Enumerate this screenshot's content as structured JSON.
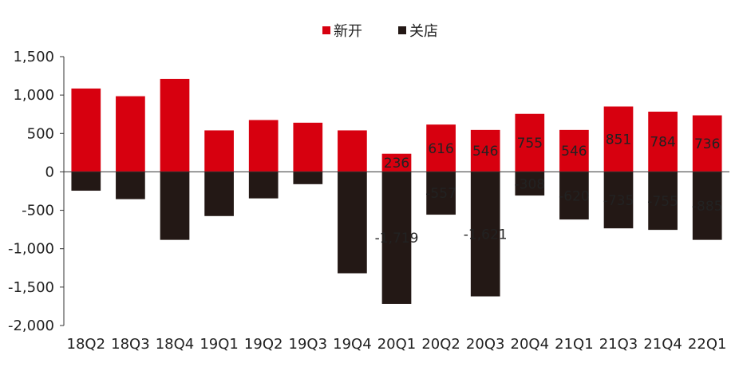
{
  "chart_data": {
    "type": "bar",
    "title": "",
    "xlabel": "",
    "ylabel": "",
    "categories": [
      "18Q2",
      "18Q3",
      "18Q4",
      "19Q1",
      "19Q2",
      "19Q3",
      "19Q4",
      "20Q1",
      "20Q2",
      "20Q3",
      "20Q4",
      "21Q1",
      "21Q3",
      "21Q4",
      "22Q1"
    ],
    "series": [
      {
        "name": "新开",
        "color": "#d7000f",
        "values": [
          1085,
          985,
          1210,
          540,
          675,
          640,
          540,
          236,
          616,
          546,
          755,
          546,
          851,
          784,
          736
        ],
        "labels": [
          "",
          "",
          "",
          "",
          "",
          "",
          "",
          "236",
          "616",
          "546",
          "755",
          "546",
          "851",
          "784",
          "736"
        ]
      },
      {
        "name": "关店",
        "color": "#231815",
        "values": [
          -245,
          -355,
          -885,
          -575,
          -345,
          -160,
          -1320,
          -1719,
          -557,
          -1621,
          -308,
          -620,
          -735,
          -755,
          -885
        ],
        "labels": [
          "",
          "",
          "",
          "",
          "",
          "",
          "",
          "-1,719",
          "-557",
          "-1,621",
          "-308",
          "-620",
          "-735",
          "-755",
          "-885"
        ]
      }
    ],
    "ylim": [
      -2000,
      1500
    ],
    "yticks": [
      1500,
      1000,
      500,
      0,
      -500,
      -1000,
      -1500,
      -2000
    ],
    "ytick_labels": [
      "1,500",
      "1,000",
      "500",
      "0",
      "-500",
      "-1,000",
      "-1,500",
      "-2,000"
    ],
    "legend_position": "top-center",
    "grid": false,
    "stacked": true
  }
}
